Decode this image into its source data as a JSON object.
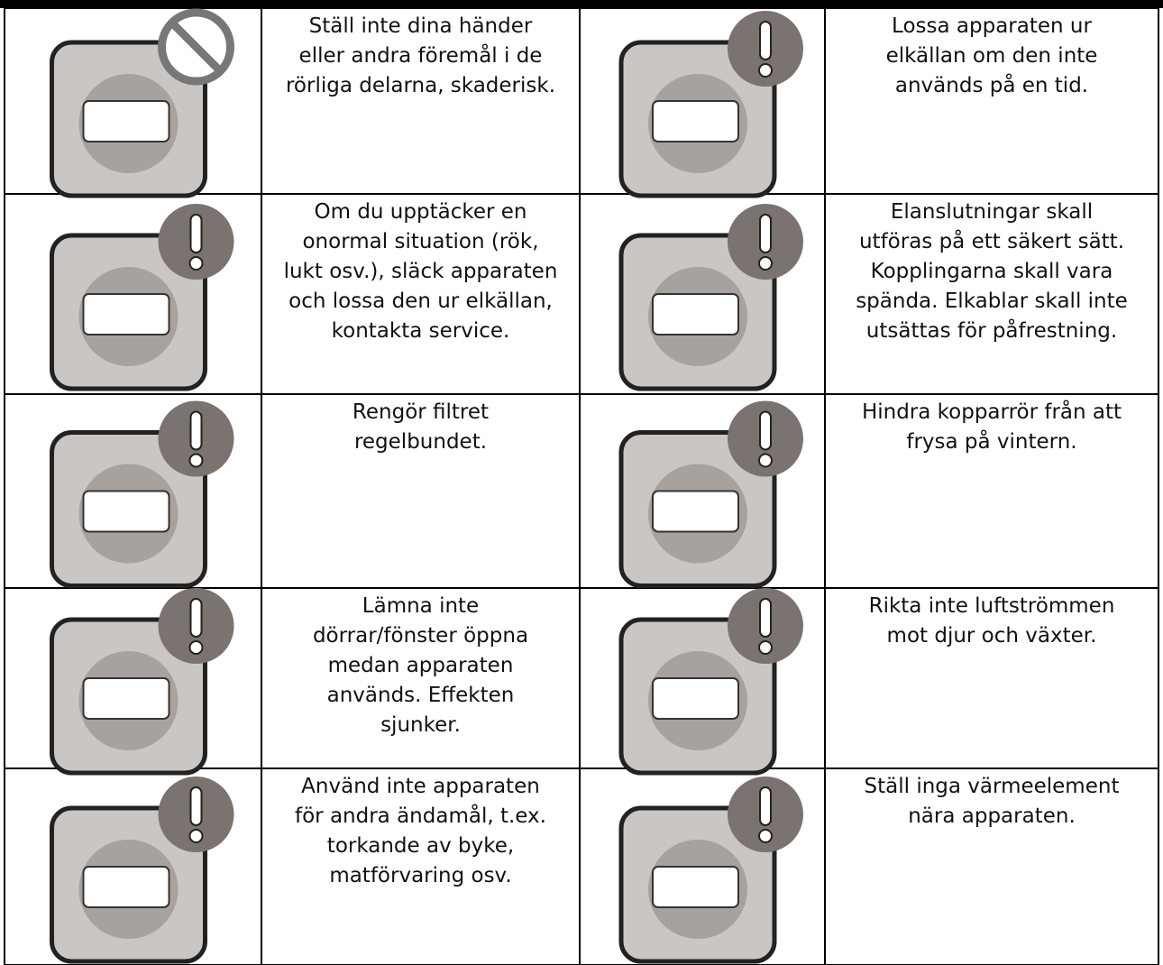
{
  "table": {
    "rows": [
      [
        [
          "Ställ inte dina händer",
          "eller andra föremål i de",
          "rörliga delarna, skaderisk."
        ],
        [
          "Lossa  apparaten ur",
          "elkällan om den inte",
          "används på en tid."
        ]
      ],
      [
        [
          "Om du upptäcker en",
          "onormal situation (rök,",
          "lukt osv.), släck apparaten",
          "och lossa den ur elkällan,",
          "kontakta service."
        ],
        [
          "Elanslutningar skall",
          "utföras på ett säkert sätt.",
          "Kopplingarna skall vara",
          "spända. Elkablar skall inte",
          "utsättas för påfrestning."
        ]
      ],
      [
        [
          "Rengör filtret",
          "regelbundet."
        ],
        [
          "Hindra kopparrör från att",
          "frysa på vintern."
        ]
      ],
      [
        [
          "Lämna inte",
          "dörrar/fönster öppna",
          "medan apparaten",
          "används. Effekten",
          "sjunker."
        ],
        [
          "Rikta inte luftströmmen",
          "mot djur och växter."
        ]
      ],
      [
        [
          "Använd inte apparaten",
          "för andra ändamål, t.ex.",
          "torkande av byke,",
          "matförvaring osv."
        ],
        [
          "Ställ inga värmeelement",
          "nära apparaten."
        ]
      ]
    ]
  }
}
